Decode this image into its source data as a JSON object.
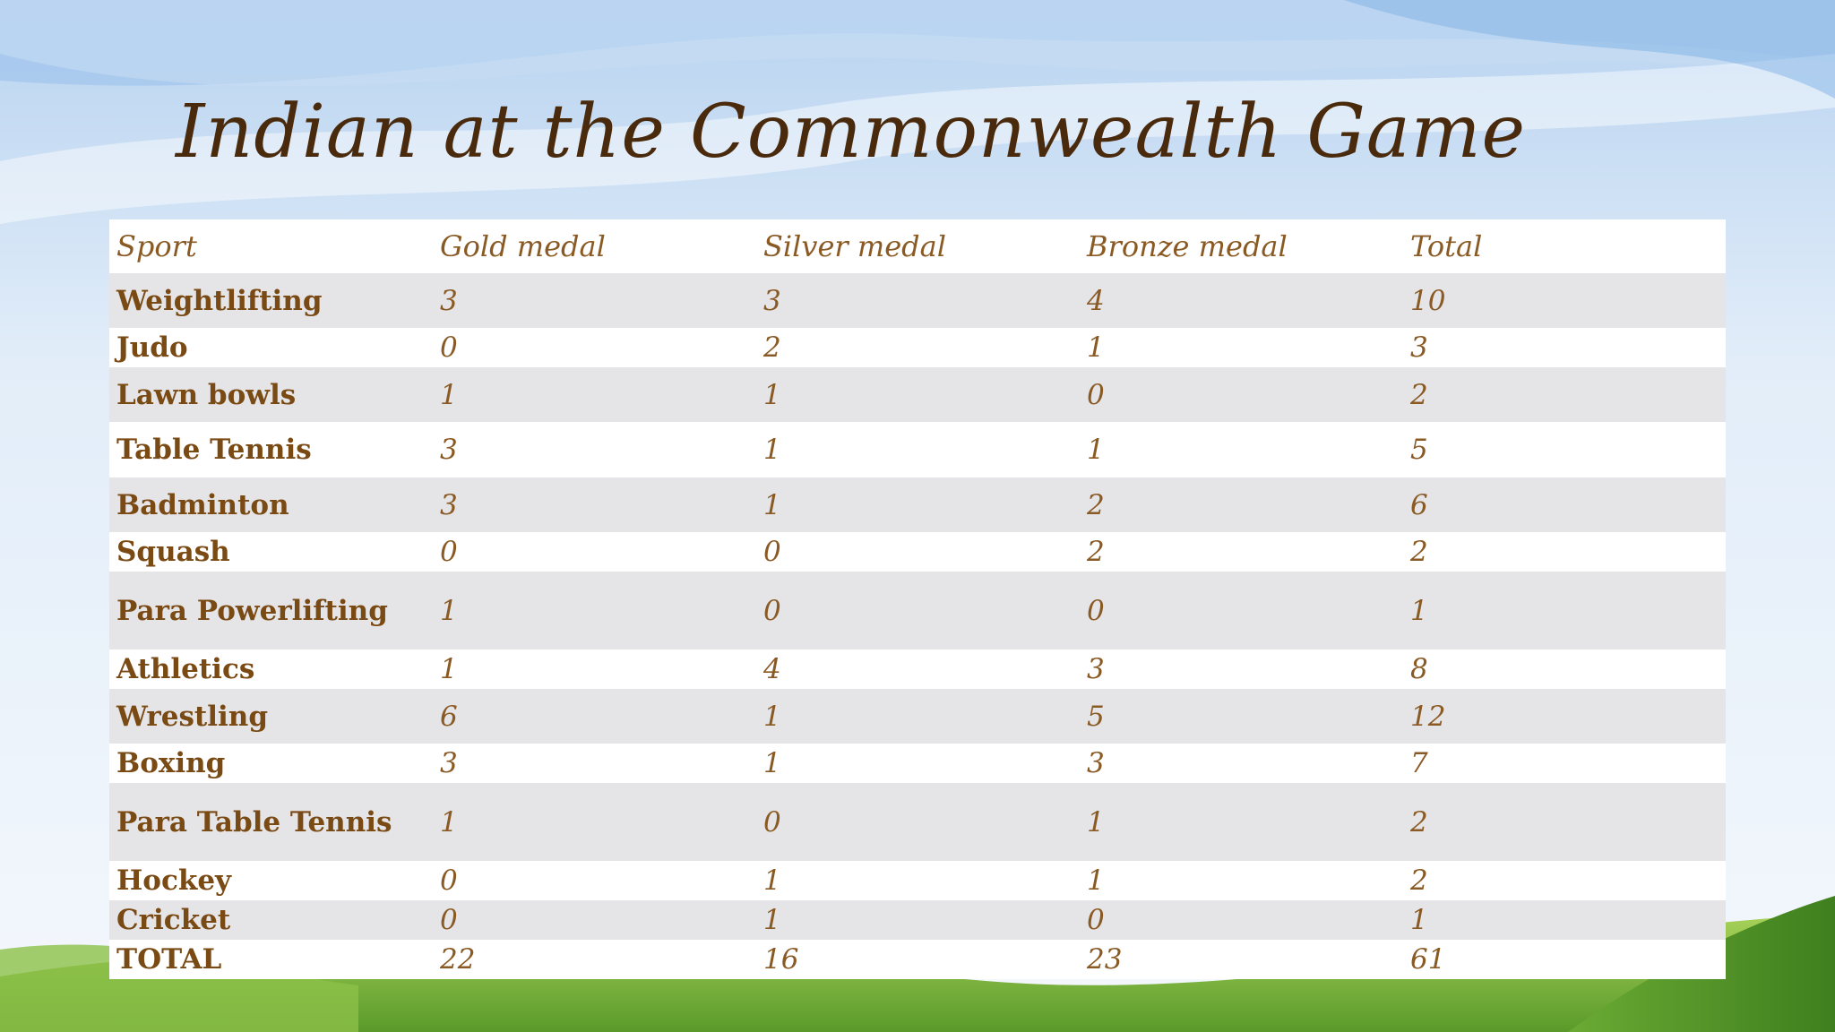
{
  "slide": {
    "title": "Indian at the Commonwealth Game"
  },
  "table": {
    "headers": [
      "Sport",
      "Gold medal",
      "Silver medal",
      "Bronze medal",
      "Total"
    ],
    "rows": [
      [
        "Weightlifting",
        "3",
        "3",
        "4",
        "10"
      ],
      [
        "Judo",
        "0",
        "2",
        "1",
        "3"
      ],
      [
        "Lawn bowls",
        "1",
        "1",
        "0",
        "2"
      ],
      [
        "Table Tennis",
        "3",
        "1",
        "1",
        "5"
      ],
      [
        "Badminton",
        "3",
        "1",
        "2",
        "6"
      ],
      [
        "Squash",
        "0",
        "0",
        "2",
        "2"
      ],
      [
        "Para Powerlifting",
        "1",
        "0",
        "0",
        "1"
      ],
      [
        "Athletics",
        "1",
        "4",
        "3",
        "8"
      ],
      [
        "Wrestling",
        "6",
        "1",
        "5",
        "12"
      ],
      [
        "Boxing",
        "3",
        "1",
        "3",
        "7"
      ],
      [
        "Para Table Tennis",
        "1",
        "0",
        "1",
        "2"
      ],
      [
        "Hockey",
        "0",
        "1",
        "1",
        "2"
      ],
      [
        "Cricket",
        "0",
        "1",
        "0",
        "1"
      ],
      [
        "TOTAL",
        "22",
        "16",
        "23",
        "61"
      ]
    ]
  },
  "colors": {
    "title": "#4a2a0c",
    "header_text": "#8a5a24",
    "sport_text": "#7a4a14",
    "row_shaded": "#e5e4e6",
    "row_plain": "#ffffff"
  }
}
